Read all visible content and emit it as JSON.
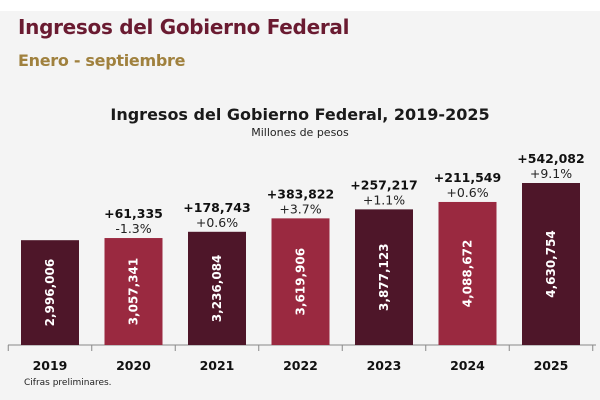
{
  "header": {
    "title": "Ingresos del Gobierno Federal",
    "subtitle": "Enero - septiembre"
  },
  "chart_data": {
    "type": "bar",
    "title": "Ingresos del Gobierno Federal, 2019-2025",
    "subtitle": "Millones de pesos",
    "xlabel": "",
    "ylabel": "",
    "ylim": [
      0,
      4630754
    ],
    "grid": false,
    "categories": [
      "2019",
      "2020",
      "2021",
      "2022",
      "2023",
      "2024",
      "2025"
    ],
    "values": [
      2996006,
      3057341,
      3236084,
      3619906,
      3877123,
      4088672,
      4630754
    ],
    "value_labels": [
      "2,996,006",
      "3,057,341",
      "3,236,084",
      "3,619,906",
      "3,877,123",
      "4,088,672",
      "4,630,754"
    ],
    "change_labels": [
      "",
      "+61,335",
      "+178,743",
      "+383,822",
      "+257,217",
      "+211,549",
      "+542,082"
    ],
    "pct_labels": [
      "",
      "-1.3%",
      "+0.6%",
      "+3.7%",
      "+1.1%",
      "+0.6%",
      "+9.1%"
    ],
    "colors": [
      "#4e1629",
      "#9a2940",
      "#4e1629",
      "#9a2940",
      "#4e1629",
      "#9a2940",
      "#4e1629"
    ]
  },
  "footnote": "Cifras preliminares."
}
